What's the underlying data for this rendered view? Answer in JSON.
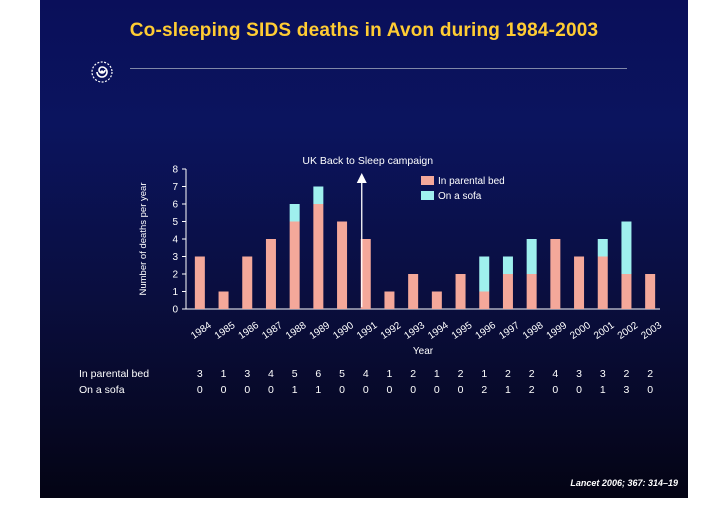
{
  "slide": {
    "title": "Co-sleeping SIDS deaths in Avon during 1984-2003",
    "citation": "Lancet 2006; 367: 314–19",
    "logo_icon": "spiral-logo-icon"
  },
  "table": {
    "row_labels": [
      "In parental bed",
      "On a sofa"
    ]
  },
  "chart_data": {
    "type": "bar",
    "stacked": true,
    "title": "",
    "xlabel": "Year",
    "ylabel": "Number of deaths per year",
    "ylim": [
      0,
      8
    ],
    "yticks": [
      0,
      1,
      2,
      3,
      4,
      5,
      6,
      7,
      8
    ],
    "categories": [
      "1984",
      "1985",
      "1986",
      "1987",
      "1988",
      "1989",
      "1990",
      "1991",
      "1992",
      "1993",
      "1994",
      "1995",
      "1996",
      "1997",
      "1998",
      "1999",
      "2000",
      "2001",
      "2002",
      "2003"
    ],
    "series": [
      {
        "name": "In parental bed",
        "color": "#f4a89a",
        "values": [
          3,
          1,
          3,
          4,
          5,
          6,
          5,
          4,
          1,
          2,
          1,
          2,
          1,
          2,
          2,
          4,
          3,
          3,
          2,
          2
        ]
      },
      {
        "name": "On a sofa",
        "color": "#9ff0ee",
        "values": [
          0,
          0,
          0,
          0,
          1,
          1,
          0,
          0,
          0,
          0,
          0,
          0,
          2,
          1,
          2,
          0,
          0,
          1,
          3,
          0
        ]
      }
    ],
    "legend": "top-right",
    "grid": false,
    "annotation": {
      "text": "UK Back to Sleep campaign",
      "category": "1991"
    }
  }
}
